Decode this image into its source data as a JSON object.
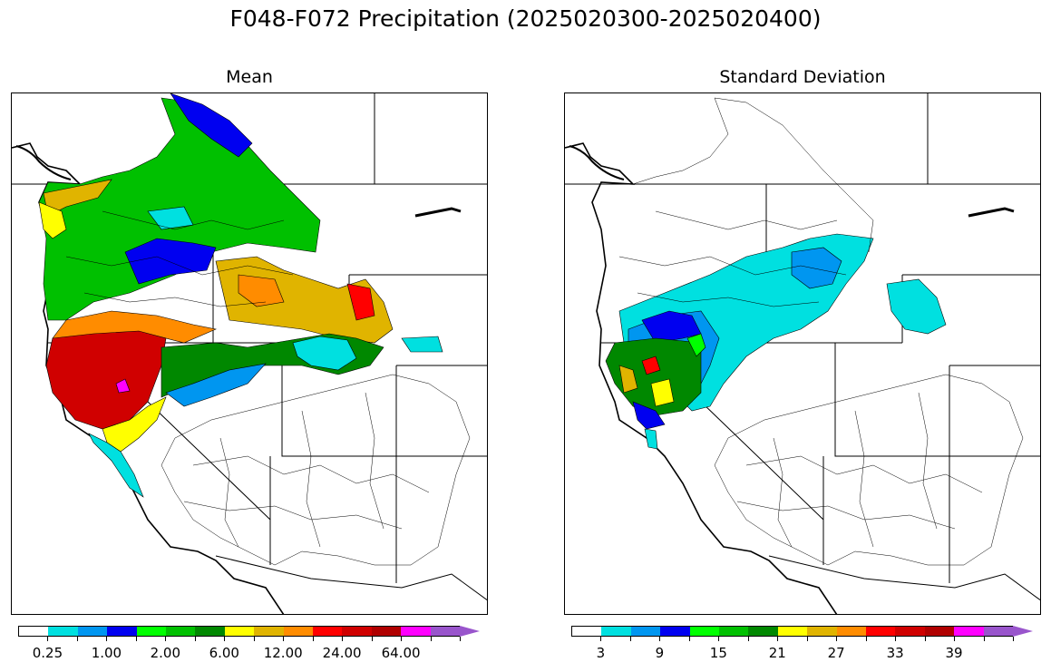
{
  "figure": {
    "title": "F048-F072 Precipitation (2025020300-2025020400)"
  },
  "panels": [
    {
      "title": "Mean",
      "colorbar": {
        "colors": [
          "#ffffff",
          "#00e0e0",
          "#0096f0",
          "#0000f0",
          "#00ff00",
          "#00c000",
          "#008800",
          "#ffff00",
          "#e0b400",
          "#ff8c00",
          "#ff0000",
          "#d00000",
          "#b00000",
          "#ff00ff",
          "#9955cc"
        ],
        "labels": [
          "0.25",
          "1.00",
          "2.00",
          "6.00",
          "12.00",
          "24.00",
          "64.00"
        ],
        "extend": "max"
      }
    },
    {
      "title": "Standard Deviation",
      "colorbar": {
        "colors": [
          "#ffffff",
          "#00e0e0",
          "#0096f0",
          "#0000f0",
          "#00ff00",
          "#00c000",
          "#008800",
          "#ffff00",
          "#e0b400",
          "#ff8c00",
          "#ff0000",
          "#d00000",
          "#b00000",
          "#ff00ff",
          "#9955cc"
        ],
        "labels": [
          "3",
          "9",
          "15",
          "21",
          "27",
          "33",
          "39"
        ],
        "extend": "max"
      }
    }
  ]
}
